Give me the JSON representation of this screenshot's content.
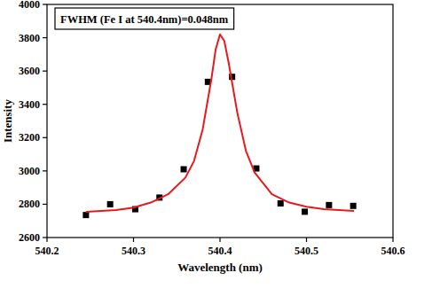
{
  "chart_data": {
    "type": "scatter",
    "annotation": "FWHM (Fe I at 540.4nm)=0.048nm",
    "x_label": "Wavelength (nm)",
    "y_label": "Intensity",
    "xlim": [
      540.2,
      540.6
    ],
    "ylim": [
      2600,
      4000
    ],
    "xticks": [
      540.2,
      540.3,
      540.4,
      540.5,
      540.6
    ],
    "yticks": [
      2600,
      2800,
      3000,
      3200,
      3400,
      3600,
      3800,
      4000
    ],
    "grid": false,
    "series": [
      {
        "type": "scatter",
        "marker": "square",
        "color": "#000000",
        "x": [
          540.245,
          540.273,
          540.302,
          540.33,
          540.358,
          540.386,
          540.414,
          540.442,
          540.47,
          540.498,
          540.526,
          540.554
        ],
        "values": [
          2735,
          2800,
          2770,
          2840,
          3010,
          3535,
          3565,
          3015,
          2805,
          2755,
          2795,
          2790
        ]
      },
      {
        "type": "line",
        "line_style": "solid",
        "color": "#e8191c",
        "x": [
          540.245,
          540.28,
          540.3,
          540.32,
          540.34,
          540.36,
          540.37,
          540.38,
          540.39,
          540.395,
          540.4,
          540.405,
          540.41,
          540.42,
          540.43,
          540.44,
          540.46,
          540.48,
          540.5,
          540.52,
          540.555
        ],
        "values": [
          2755,
          2765,
          2780,
          2810,
          2860,
          2960,
          3060,
          3250,
          3550,
          3730,
          3820,
          3780,
          3650,
          3350,
          3120,
          2990,
          2860,
          2810,
          2785,
          2770,
          2760
        ]
      }
    ]
  }
}
